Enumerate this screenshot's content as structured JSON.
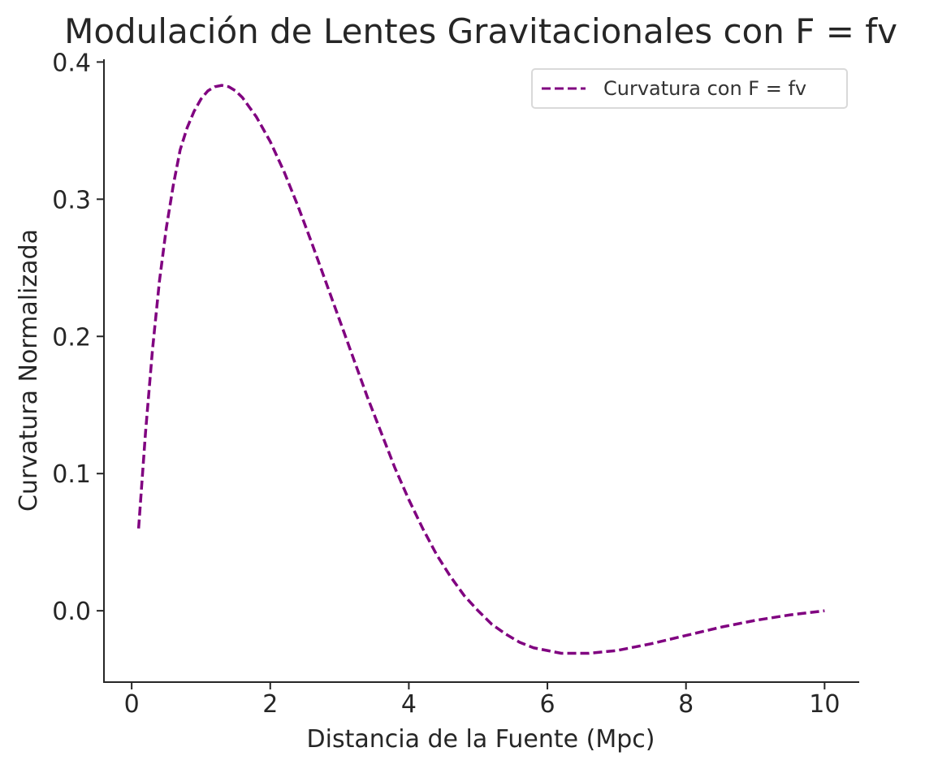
{
  "chart_data": {
    "type": "line",
    "title": "Modulación de Lentes Gravitacionales con F = fv",
    "xlabel": "Distancia de la Fuente (Mpc)",
    "ylabel": "Curvatura Normalizada",
    "xlim": [
      -0.4,
      10.5
    ],
    "ylim": [
      -0.052,
      0.402
    ],
    "xticks": [
      0,
      2,
      4,
      6,
      8,
      10
    ],
    "xtick_labels": [
      "0",
      "2",
      "4",
      "6",
      "8",
      "10"
    ],
    "yticks": [
      0.0,
      0.1,
      0.2,
      0.3,
      0.4
    ],
    "ytick_labels": [
      "0.0",
      "0.1",
      "0.2",
      "0.3",
      "0.4"
    ],
    "grid": false,
    "legend": {
      "position": "upper right",
      "entries": [
        "Curvatura con F = fv"
      ]
    },
    "series": [
      {
        "name": "Curvatura con F = fv",
        "color": "#800080",
        "line_style": "dashed",
        "x": [
          0.1,
          0.2,
          0.3,
          0.4,
          0.5,
          0.6,
          0.7,
          0.8,
          0.9,
          1.0,
          1.1,
          1.2,
          1.3,
          1.4,
          1.5,
          1.6,
          1.7,
          1.8,
          1.9,
          2.0,
          2.2,
          2.4,
          2.6,
          2.8,
          3.0,
          3.2,
          3.4,
          3.6,
          3.8,
          4.0,
          4.2,
          4.4,
          4.6,
          4.8,
          5.0,
          5.2,
          5.4,
          5.6,
          5.8,
          6.0,
          6.2,
          6.4,
          6.6,
          6.8,
          7.0,
          7.5,
          8.0,
          8.5,
          9.0,
          9.5,
          10.0
        ],
        "y": [
          0.06,
          0.13,
          0.19,
          0.24,
          0.279,
          0.31,
          0.336,
          0.352,
          0.364,
          0.373,
          0.379,
          0.382,
          0.383,
          0.382,
          0.379,
          0.374,
          0.367,
          0.36,
          0.351,
          0.342,
          0.32,
          0.295,
          0.268,
          0.24,
          0.212,
          0.184,
          0.156,
          0.13,
          0.104,
          0.081,
          0.06,
          0.041,
          0.025,
          0.011,
          0.0,
          -0.01,
          -0.017,
          -0.023,
          -0.027,
          -0.029,
          -0.031,
          -0.031,
          -0.031,
          -0.03,
          -0.029,
          -0.024,
          -0.018,
          -0.012,
          -0.007,
          -0.003,
          0.0
        ]
      }
    ]
  }
}
